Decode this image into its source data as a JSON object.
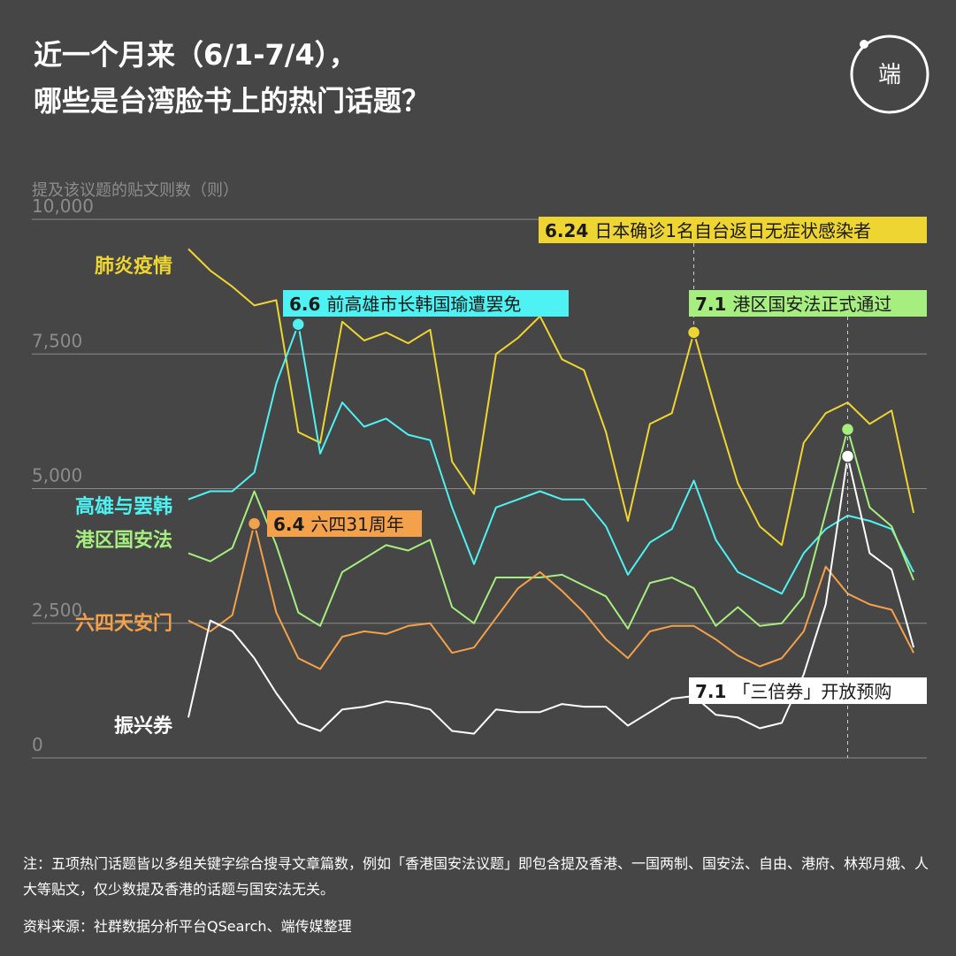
{
  "title_line1": "近一个月来（6/1-7/4），",
  "title_line2": "哪些是台湾脸书上的热门话题？",
  "logo": "端",
  "footer": {
    "note": "注：五项热门话题皆以多组关键字综合搜寻文章篇数，例如「香港国安法议题」即包含提及香港、一国两制、国安法、自由、港府、林郑月娥、人大等贴文，仅少数提及香港的话题与国安法无关。",
    "source": "资料来源：社群数据分析平台QSearch、端传媒整理"
  },
  "colors": {
    "background": "#464646",
    "grid": "#8a8a8a",
    "yellow": "#eed532",
    "cyan": "#4ef2f2",
    "green": "#a6ee7f",
    "orange": "#f4a14b",
    "white": "#ffffff"
  },
  "chart_data": {
    "type": "line",
    "ylabel": "提及该议题的贴文则数（则）",
    "ylim": [
      0,
      10000
    ],
    "yticks": [
      0,
      2500,
      5000,
      7500,
      10000
    ],
    "ytick_labels": [
      "0",
      "2,500",
      "5,000",
      "7,500",
      "10,000"
    ],
    "x": [
      "6/1",
      "6/2",
      "6/3",
      "6/4",
      "6/5",
      "6/6",
      "6/7",
      "6/8",
      "6/9",
      "6/10",
      "6/11",
      "6/12",
      "6/13",
      "6/14",
      "6/15",
      "6/16",
      "6/17",
      "6/18",
      "6/19",
      "6/20",
      "6/21",
      "6/22",
      "6/23",
      "6/24",
      "6/25",
      "6/26",
      "6/27",
      "6/28",
      "6/29",
      "6/30",
      "7/1",
      "7/2",
      "7/3",
      "7/4"
    ],
    "series": [
      {
        "name": "肺炎疫情",
        "color": "#eed532",
        "values": [
          9450,
          9050,
          8750,
          8400,
          8500,
          6050,
          5850,
          8100,
          7750,
          7900,
          7700,
          7950,
          5500,
          4900,
          7500,
          7800,
          8200,
          7400,
          7200,
          6050,
          4400,
          6200,
          6400,
          7900,
          6450,
          5100,
          4300,
          3950,
          5850,
          6400,
          6600,
          6200,
          6450,
          4550
        ]
      },
      {
        "name": "高雄与罢韩",
        "color": "#4ef2f2",
        "values": [
          4800,
          4950,
          4950,
          5300,
          6950,
          8050,
          5650,
          6600,
          6150,
          6300,
          6000,
          5900,
          4650,
          3600,
          4650,
          4800,
          4950,
          4800,
          4800,
          4300,
          3400,
          4000,
          4250,
          5150,
          4050,
          3450,
          3250,
          3050,
          3800,
          4250,
          4500,
          4400,
          4250,
          3450
        ]
      },
      {
        "name": "港区国安法",
        "color": "#a6ee7f",
        "values": [
          3800,
          3650,
          3900,
          4950,
          3950,
          2700,
          2450,
          3450,
          3700,
          3950,
          3850,
          4050,
          2800,
          2500,
          3350,
          3350,
          3350,
          3400,
          3200,
          3000,
          2400,
          3250,
          3350,
          3150,
          2450,
          2800,
          2450,
          2500,
          3000,
          4550,
          6100,
          4650,
          4300,
          3300
        ]
      },
      {
        "name": "六四天安门",
        "color": "#f4a14b",
        "values": [
          2550,
          2350,
          2650,
          4350,
          2700,
          1850,
          1650,
          2250,
          2350,
          2300,
          2450,
          2500,
          1950,
          2050,
          2600,
          3150,
          3450,
          3100,
          2700,
          2200,
          1850,
          2350,
          2450,
          2450,
          2200,
          1900,
          1700,
          1850,
          2350,
          3550,
          3050,
          2850,
          2750,
          1950
        ]
      },
      {
        "name": "振兴券",
        "color": "#ffffff",
        "values": [
          750,
          2550,
          2350,
          1850,
          1200,
          650,
          500,
          900,
          950,
          1050,
          1000,
          900,
          500,
          450,
          900,
          850,
          850,
          1000,
          950,
          950,
          600,
          850,
          1100,
          1150,
          800,
          750,
          550,
          650,
          1550,
          2850,
          5600,
          3800,
          3500,
          2050
        ]
      }
    ],
    "series_labels": [
      "肺炎疫情",
      "高雄与罢韩",
      "港区国安法",
      "六四天安门",
      "振兴券"
    ],
    "annotations": [
      {
        "date_bold": "6.24",
        "text": "日本确诊1名自台返日无症状感染者",
        "series": "肺炎疫情",
        "x": "6/24",
        "y": 7900,
        "color": "#eed532",
        "dashed": true
      },
      {
        "date_bold": "6.6",
        "text": "前高雄市长韩国瑜遭罢免",
        "series": "高雄与罢韩",
        "x": "6/6",
        "y": 8050,
        "color": "#4ef2f2",
        "dashed": false
      },
      {
        "date_bold": "7.1",
        "text": "港区国安法正式通过",
        "series": "港区国安法",
        "x": "7/1",
        "y": 6100,
        "color": "#a6ee7f",
        "dashed": true
      },
      {
        "date_bold": "6.4",
        "text": "六四31周年",
        "series": "六四天安门",
        "x": "6/4",
        "y": 4350,
        "color": "#f4a14b",
        "dashed": false
      },
      {
        "date_bold": "7.1",
        "text": "「三倍券」开放预购",
        "series": "振兴券",
        "x": "7/1",
        "y": 5600,
        "color": "#ffffff",
        "dashed": false
      }
    ],
    "grid": true
  }
}
